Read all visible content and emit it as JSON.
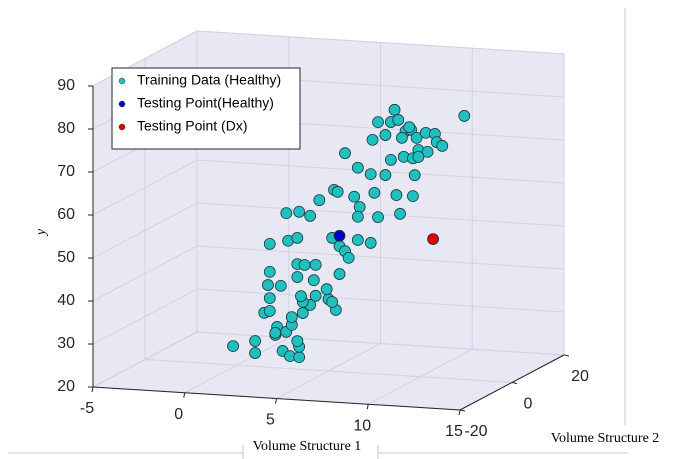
{
  "chart_data": {
    "type": "scatter3d",
    "xlabel": "Volume Structure 1",
    "zlabel": "Volume Structure 2",
    "ylabel": "y",
    "xlim": [
      -5,
      15
    ],
    "xticks": [
      -5,
      0,
      5,
      10,
      15
    ],
    "zlim": [
      -20,
      20
    ],
    "zticks": [
      -20,
      0,
      20
    ],
    "ylim": [
      20,
      90
    ],
    "yticks": [
      20,
      30,
      40,
      50,
      60,
      70,
      80,
      90
    ],
    "grid": true,
    "legend": "upper left",
    "series": [
      {
        "name": "Training Data (Healthy)",
        "color": "#20c0c0",
        "x": [
          -0.2,
          1.0,
          1.0,
          2.2,
          2.1,
          2.5,
          2.9,
          3.4,
          3.4,
          1.5,
          1.8,
          2.1,
          2.7,
          3.0,
          3.3,
          3.0,
          3.6,
          4.0,
          4.3,
          5.0,
          3.6,
          3.5,
          1.8,
          1.7,
          2.4,
          3.3,
          4.2,
          3.3,
          3.7,
          4.3,
          1.8,
          1.8,
          2.8,
          3.3,
          2.7,
          3.4,
          4.0,
          4.5,
          5.3,
          5.5,
          5.2,
          5.6,
          5.9,
          6.1,
          5.6,
          5.4,
          5.2,
          6.6,
          7.3,
          6.7,
          6.6,
          5.9,
          6.4,
          7.7,
          7.5,
          8.1,
          8.4,
          7.3,
          6.6,
          7.4,
          8.1,
          8.4,
          8.6,
          7.7,
          8.8,
          9.2,
          9.5,
          9.8,
          9.0,
          9.1,
          9.6,
          9.7,
          9.9,
          10.3,
          10.8,
          10.9,
          11.2,
          10.4,
          9.4,
          9.9,
          8.7,
          9.6,
          8.9,
          12.4,
          4.9
        ],
        "y": [
          24.4,
          25.9,
          23.1,
          29.5,
          27.6,
          24.0,
          22.9,
          22.8,
          25.2,
          32.6,
          33.1,
          28.1,
          28.5,
          30.2,
          26.5,
          32.0,
          33.1,
          35.1,
          37.3,
          36.7,
          35.7,
          37.0,
          36.1,
          39.1,
          39.1,
          41.4,
          40.9,
          44.4,
          44.3,
          44.5,
          42.2,
          48.7,
          49.7,
          50.5,
          56.1,
          56.6,
          55.8,
          59.6,
          62.2,
          61.8,
          51.0,
          49.2,
          48.1,
          46.6,
          42.7,
          34.3,
          36.1,
          50.9,
          50.4,
          58.6,
          56.3,
          70.9,
          60.9,
          56.5,
          62.1,
          66.4,
          70.0,
          66.4,
          67.7,
          74.4,
          75.7,
          78.8,
          81.7,
          78.6,
          79.4,
          76.9,
          77.3,
          75.5,
          75.3,
          70.9,
          70.7,
          66.8,
          72.7,
          76.8,
          76.7,
          74.8,
          74.0,
          72.4,
          77.9,
          71.1,
          61.9,
          61.9,
          57.6,
          81.3,
          39.0
        ],
        "z": [
          0,
          0,
          0,
          0,
          0,
          0,
          0,
          0,
          0,
          0,
          0,
          0,
          0,
          0,
          0,
          0,
          0,
          0,
          0,
          0,
          0,
          0,
          0,
          0,
          0,
          0,
          0,
          0,
          0,
          0,
          0,
          0,
          0,
          0,
          0,
          0,
          0,
          0,
          0,
          0,
          0,
          0,
          0,
          0,
          0,
          0,
          0,
          0,
          0,
          0,
          0,
          0,
          0,
          0,
          0,
          0,
          0,
          0,
          0,
          0,
          0,
          0,
          0,
          0,
          0,
          0,
          0,
          0,
          0,
          0,
          0,
          0,
          0,
          0,
          0,
          0,
          0,
          0,
          0,
          0,
          0,
          0,
          0,
          0,
          0
        ]
      },
      {
        "name": "Testing Point(Healthy)",
        "color": "#0000cd",
        "x": [
          5.6
        ],
        "y": [
          51.6
        ],
        "z": [
          0
        ]
      },
      {
        "name": "Testing Point (Dx)",
        "color": "#e00000",
        "x": [
          10.7
        ],
        "y": [
          52.2
        ],
        "z": [
          0
        ]
      }
    ]
  }
}
